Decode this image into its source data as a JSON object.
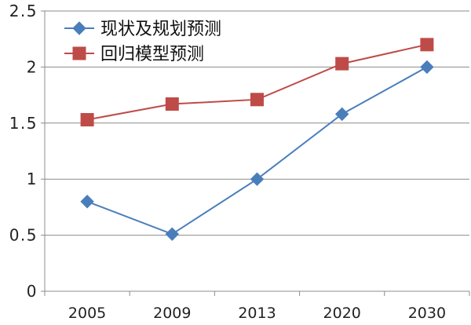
{
  "chart_data": {
    "type": "line",
    "title": "",
    "xlabel": "",
    "ylabel": "",
    "categories": [
      "2005",
      "2009",
      "2013",
      "2020",
      "2030"
    ],
    "ylim": [
      0,
      2.5
    ],
    "yticks": [
      0,
      0.5,
      1,
      1.5,
      2,
      2.5
    ],
    "ytick_labels": [
      "0",
      "0.5",
      "1",
      "1.5",
      "2",
      "2.5"
    ],
    "grid": true,
    "legend_position": "top-left",
    "series": [
      {
        "name": "现状及规划预测",
        "values": [
          0.8,
          0.51,
          1.0,
          1.58,
          2.0
        ],
        "color": "#4A7EBB",
        "marker": "diamond",
        "marker_color": "#4A7EBB"
      },
      {
        "name": "回归模型预测",
        "values": [
          1.53,
          1.67,
          1.71,
          2.03,
          2.2
        ],
        "color": "#BE4B48",
        "marker": "square",
        "marker_color": "#BE4B48"
      }
    ]
  }
}
